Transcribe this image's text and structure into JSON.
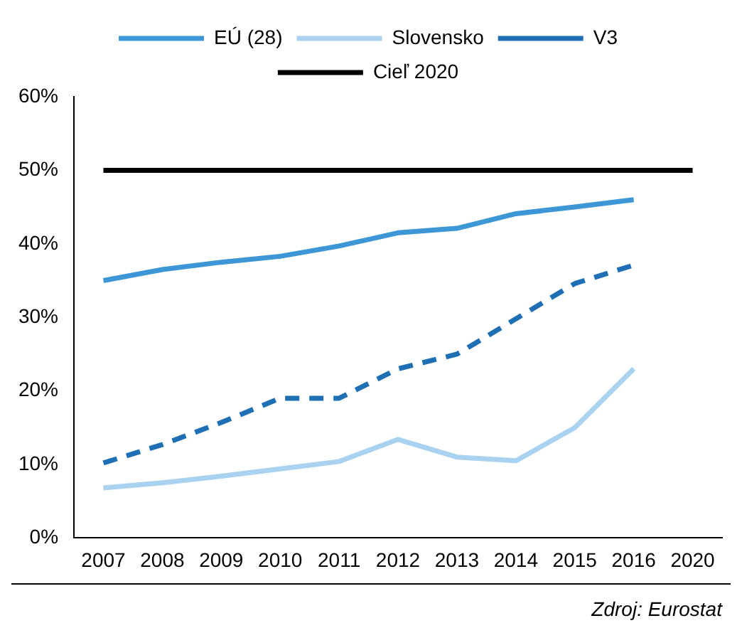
{
  "chart_data": {
    "type": "line",
    "categories": [
      "2007",
      "2008",
      "2009",
      "2010",
      "2011",
      "2012",
      "2013",
      "2014",
      "2015",
      "2016",
      "2020"
    ],
    "series": [
      {
        "name": "EÚ (28)",
        "color": "#3d97d6",
        "values": [
          35,
          36.5,
          37.5,
          38.3,
          39.7,
          41.5,
          42.1,
          44.1,
          45,
          46,
          null
        ]
      },
      {
        "name": "Slovensko",
        "color": "#a9d2f0",
        "values": [
          6.8,
          7.5,
          8.4,
          9.4,
          10.4,
          13.4,
          11,
          10.5,
          15,
          23,
          null
        ]
      },
      {
        "name": "V3",
        "color": "#1f6fb5",
        "line_style": "dashed",
        "values": [
          10.2,
          12.7,
          15.7,
          19,
          19,
          23,
          25,
          29.8,
          34.6,
          37.1,
          null
        ]
      },
      {
        "name": "Cieľ 2020",
        "color": "#000000",
        "values": [
          50,
          50,
          50,
          50,
          50,
          50,
          50,
          50,
          50,
          50,
          50
        ]
      }
    ],
    "ylim": [
      0,
      60
    ],
    "yticks": [
      {
        "value": 0,
        "label": "0%"
      },
      {
        "value": 10,
        "label": "10%"
      },
      {
        "value": 20,
        "label": "20%"
      },
      {
        "value": 30,
        "label": "30%"
      },
      {
        "value": 40,
        "label": "40%"
      },
      {
        "value": 50,
        "label": "50%"
      },
      {
        "value": 60,
        "label": "60%"
      }
    ],
    "grid": false,
    "legend": "top",
    "marker": "none",
    "annotations": [
      "Zdroj: Eurostat"
    ]
  }
}
